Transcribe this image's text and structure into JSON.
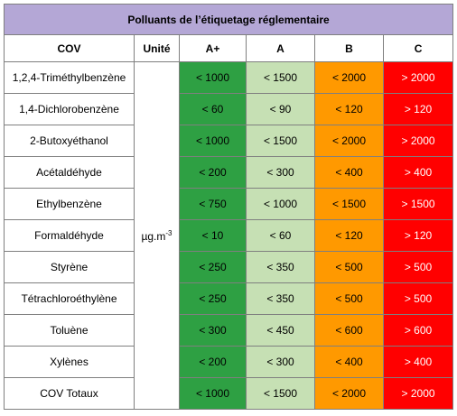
{
  "header": {
    "title": "Polluants de l’étiquetage réglementaire"
  },
  "table": {
    "columns": [
      "COV",
      "Unité",
      "A+",
      "A",
      "B",
      "C"
    ],
    "unit": {
      "base": "µg.m",
      "exponent": "-3"
    },
    "rows": [
      {
        "name": "1,2,4-Triméthylbenzène",
        "values": [
          "< 1000",
          "< 1500",
          "< 2000",
          "> 2000"
        ]
      },
      {
        "name": "1,4-Dichlorobenzène",
        "values": [
          "< 60",
          "< 90",
          "< 120",
          "> 120"
        ]
      },
      {
        "name": "2-Butoxyéthanol",
        "values": [
          "< 1000",
          "< 1500",
          "< 2000",
          "> 2000"
        ]
      },
      {
        "name": "Acétaldéhyde",
        "values": [
          "< 200",
          "< 300",
          "< 400",
          "> 400"
        ]
      },
      {
        "name": "Ethylbenzène",
        "values": [
          "< 750",
          "< 1000",
          "< 1500",
          "> 1500"
        ]
      },
      {
        "name": "Formaldéhyde",
        "values": [
          "< 10",
          "< 60",
          "< 120",
          "> 120"
        ]
      },
      {
        "name": "Styrène",
        "values": [
          "< 250",
          "< 350",
          "< 500",
          "> 500"
        ]
      },
      {
        "name": "Tétrachloroéthylène",
        "values": [
          "< 250",
          "< 350",
          "< 500",
          "> 500"
        ]
      },
      {
        "name": "Toluène",
        "values": [
          "< 300",
          "< 450",
          "< 600",
          "> 600"
        ]
      },
      {
        "name": "Xylènes",
        "values": [
          "< 200",
          "< 300",
          "< 400",
          "> 400"
        ]
      },
      {
        "name": "COV Totaux",
        "values": [
          "< 1000",
          "< 1500",
          "< 2000",
          "> 2000"
        ]
      }
    ]
  }
}
